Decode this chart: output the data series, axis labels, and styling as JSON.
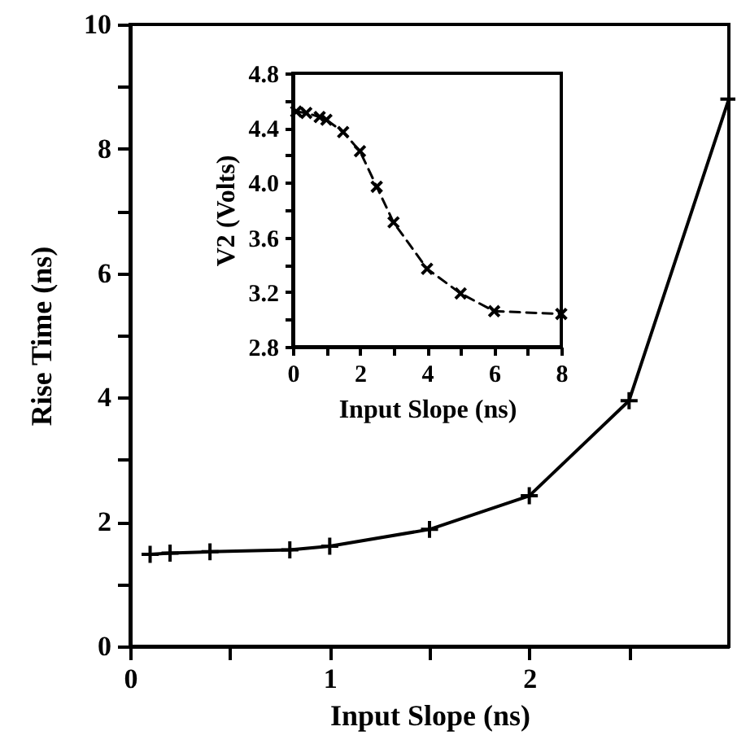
{
  "chart_data": [
    {
      "type": "line",
      "xlabel": "Input Slope (ns)",
      "ylabel": "Rise Time (ns)",
      "x": [
        0.1,
        0.2,
        0.4,
        0.8,
        1.0,
        1.5,
        2.0,
        2.5,
        3.0
      ],
      "series": [
        {
          "color": "#000000",
          "values": [
            1.48,
            1.5,
            1.52,
            1.55,
            1.61,
            1.88,
            2.42,
            3.95,
            8.8
          ]
        }
      ],
      "xlim": [
        0,
        3
      ],
      "ylim": [
        0,
        10
      ],
      "xticks": [
        0,
        {
          "value": 0.5,
          "label": null
        },
        1,
        {
          "value": 1.5,
          "label": null
        },
        2,
        {
          "value": 2.5,
          "label": null
        }
      ],
      "yticks": [
        0,
        {
          "value": 1,
          "label": null
        },
        2,
        {
          "value": 3,
          "label": null
        },
        4,
        {
          "value": 5,
          "label": null
        },
        6,
        {
          "value": 7,
          "label": null
        },
        8,
        {
          "value": 9,
          "label": null
        },
        10
      ],
      "marker": "cross",
      "line_style": "solid",
      "grid": false
    },
    {
      "type": "line",
      "xlabel": "Input Slope (ns)",
      "ylabel": "V2 (Volts)",
      "x": [
        0.1,
        0.4,
        0.8,
        1.0,
        1.5,
        2.0,
        2.5,
        3.0,
        4.0,
        5.0,
        6.0,
        8.0
      ],
      "series": [
        {
          "color": "#000000",
          "values": [
            4.52,
            4.51,
            4.48,
            4.46,
            4.37,
            4.23,
            3.97,
            3.71,
            3.37,
            3.19,
            3.06,
            3.04
          ]
        }
      ],
      "xlim": [
        0,
        8
      ],
      "ylim": [
        2.8,
        4.8
      ],
      "xticks": [
        0,
        {
          "value": 1,
          "label": null
        },
        2,
        {
          "value": 3,
          "label": null
        },
        4,
        {
          "value": 5,
          "label": null
        },
        6,
        {
          "value": 7,
          "label": null
        },
        8
      ],
      "yticks": [
        2.8,
        {
          "value": 3.0,
          "label": null
        },
        3.2,
        {
          "value": 3.4,
          "label": null
        },
        3.6,
        {
          "value": 3.8,
          "label": null
        },
        {
          "value": 4.0,
          "label": "4.0"
        },
        {
          "value": 4.2,
          "label": null
        },
        4.4,
        {
          "value": 4.6,
          "label": null
        },
        4.8
      ],
      "marker": "cross",
      "line_style": "dashed",
      "grid": false
    }
  ]
}
